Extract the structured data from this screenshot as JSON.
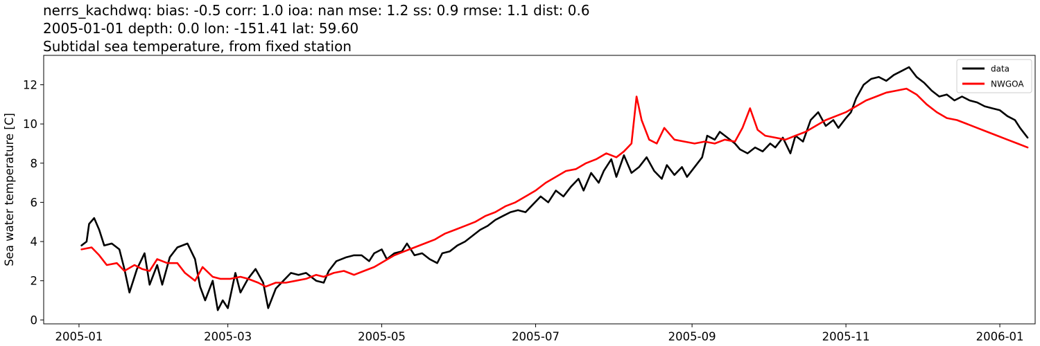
{
  "chart_data": {
    "type": "line",
    "title_lines": [
      "nerrs_kachdwq: bias: -0.5  corr: 1.0  ioa: nan  mse: 1.2  ss: 0.9  rmse: 1.1  dist: 0.6",
      "2005-01-01 depth: 0.0 lon: -151.41 lat: 59.60",
      "Subtidal sea temperature, from fixed station"
    ],
    "xlabel": "",
    "ylabel": "Sea water temperature [C]",
    "xlim": [
      "2004-12-18",
      "2006-01-15"
    ],
    "ylim": [
      -0.2,
      13.5
    ],
    "x_ticks": [
      "2005-01",
      "2005-03",
      "2005-05",
      "2005-07",
      "2005-09",
      "2005-11",
      "2006-01"
    ],
    "y_ticks": [
      0,
      2,
      4,
      6,
      8,
      10,
      12
    ],
    "grid": false,
    "legend": {
      "position": "top-right",
      "entries": [
        "data",
        "NWGOA"
      ]
    },
    "series": [
      {
        "name": "data",
        "color": "#000000",
        "points": [
          [
            "2005-01-02",
            3.8
          ],
          [
            "2005-01-04",
            4.0
          ],
          [
            "2005-01-05",
            4.9
          ],
          [
            "2005-01-07",
            5.2
          ],
          [
            "2005-01-09",
            4.6
          ],
          [
            "2005-01-11",
            3.8
          ],
          [
            "2005-01-14",
            3.9
          ],
          [
            "2005-01-17",
            3.6
          ],
          [
            "2005-01-19",
            2.6
          ],
          [
            "2005-01-21",
            1.4
          ],
          [
            "2005-01-24",
            2.6
          ],
          [
            "2005-01-27",
            3.4
          ],
          [
            "2005-01-29",
            1.8
          ],
          [
            "2005-02-01",
            2.8
          ],
          [
            "2005-02-03",
            1.8
          ],
          [
            "2005-02-06",
            3.2
          ],
          [
            "2005-02-09",
            3.7
          ],
          [
            "2005-02-13",
            3.9
          ],
          [
            "2005-02-16",
            3.1
          ],
          [
            "2005-02-18",
            1.7
          ],
          [
            "2005-02-20",
            1.0
          ],
          [
            "2005-02-23",
            2.0
          ],
          [
            "2005-02-25",
            0.5
          ],
          [
            "2005-02-27",
            1.0
          ],
          [
            "2005-03-01",
            0.6
          ],
          [
            "2005-03-04",
            2.4
          ],
          [
            "2005-03-06",
            1.4
          ],
          [
            "2005-03-09",
            2.1
          ],
          [
            "2005-03-12",
            2.6
          ],
          [
            "2005-03-15",
            1.9
          ],
          [
            "2005-03-17",
            0.6
          ],
          [
            "2005-03-20",
            1.6
          ],
          [
            "2005-03-23",
            2.0
          ],
          [
            "2005-03-26",
            2.4
          ],
          [
            "2005-03-29",
            2.3
          ],
          [
            "2005-04-01",
            2.4
          ],
          [
            "2005-04-05",
            2.0
          ],
          [
            "2005-04-08",
            1.9
          ],
          [
            "2005-04-10",
            2.5
          ],
          [
            "2005-04-13",
            3.0
          ],
          [
            "2005-04-17",
            3.2
          ],
          [
            "2005-04-20",
            3.3
          ],
          [
            "2005-04-23",
            3.3
          ],
          [
            "2005-04-26",
            3.0
          ],
          [
            "2005-04-28",
            3.4
          ],
          [
            "2005-05-01",
            3.6
          ],
          [
            "2005-05-03",
            3.1
          ],
          [
            "2005-05-06",
            3.4
          ],
          [
            "2005-05-09",
            3.5
          ],
          [
            "2005-05-11",
            3.9
          ],
          [
            "2005-05-14",
            3.3
          ],
          [
            "2005-05-17",
            3.4
          ],
          [
            "2005-05-20",
            3.1
          ],
          [
            "2005-05-23",
            2.9
          ],
          [
            "2005-05-25",
            3.4
          ],
          [
            "2005-05-28",
            3.5
          ],
          [
            "2005-05-31",
            3.8
          ],
          [
            "2005-06-03",
            4.0
          ],
          [
            "2005-06-06",
            4.3
          ],
          [
            "2005-06-09",
            4.6
          ],
          [
            "2005-06-12",
            4.8
          ],
          [
            "2005-06-15",
            5.1
          ],
          [
            "2005-06-18",
            5.3
          ],
          [
            "2005-06-21",
            5.5
          ],
          [
            "2005-06-24",
            5.6
          ],
          [
            "2005-06-27",
            5.5
          ],
          [
            "2005-06-30",
            5.9
          ],
          [
            "2005-07-03",
            6.3
          ],
          [
            "2005-07-06",
            6.0
          ],
          [
            "2005-07-09",
            6.6
          ],
          [
            "2005-07-12",
            6.3
          ],
          [
            "2005-07-15",
            6.8
          ],
          [
            "2005-07-18",
            7.2
          ],
          [
            "2005-07-20",
            6.6
          ],
          [
            "2005-07-23",
            7.5
          ],
          [
            "2005-07-26",
            7.0
          ],
          [
            "2005-07-28",
            7.6
          ],
          [
            "2005-07-31",
            8.2
          ],
          [
            "2005-08-02",
            7.3
          ],
          [
            "2005-08-05",
            8.4
          ],
          [
            "2005-08-08",
            7.5
          ],
          [
            "2005-08-11",
            7.8
          ],
          [
            "2005-08-14",
            8.3
          ],
          [
            "2005-08-17",
            7.6
          ],
          [
            "2005-08-20",
            7.2
          ],
          [
            "2005-08-22",
            7.9
          ],
          [
            "2005-08-25",
            7.4
          ],
          [
            "2005-08-28",
            7.8
          ],
          [
            "2005-08-30",
            7.3
          ],
          [
            "2005-09-02",
            7.8
          ],
          [
            "2005-09-05",
            8.3
          ],
          [
            "2005-09-07",
            9.4
          ],
          [
            "2005-09-10",
            9.2
          ],
          [
            "2005-09-12",
            9.6
          ],
          [
            "2005-09-15",
            9.3
          ],
          [
            "2005-09-18",
            9.0
          ],
          [
            "2005-09-20",
            8.7
          ],
          [
            "2005-09-23",
            8.5
          ],
          [
            "2005-09-26",
            8.8
          ],
          [
            "2005-09-29",
            8.6
          ],
          [
            "2005-10-02",
            9.0
          ],
          [
            "2005-10-04",
            8.8
          ],
          [
            "2005-10-07",
            9.3
          ],
          [
            "2005-10-10",
            8.5
          ],
          [
            "2005-10-12",
            9.4
          ],
          [
            "2005-10-15",
            9.1
          ],
          [
            "2005-10-18",
            10.2
          ],
          [
            "2005-10-21",
            10.6
          ],
          [
            "2005-10-24",
            9.9
          ],
          [
            "2005-10-27",
            10.2
          ],
          [
            "2005-10-29",
            9.8
          ],
          [
            "2005-11-01",
            10.3
          ],
          [
            "2005-11-03",
            10.6
          ],
          [
            "2005-11-05",
            11.3
          ],
          [
            "2005-11-08",
            12.0
          ],
          [
            "2005-11-11",
            12.3
          ],
          [
            "2005-11-14",
            12.4
          ],
          [
            "2005-11-17",
            12.2
          ],
          [
            "2005-11-20",
            12.5
          ],
          [
            "2005-11-23",
            12.7
          ],
          [
            "2005-11-26",
            12.9
          ],
          [
            "2005-11-29",
            12.4
          ],
          [
            "2005-12-02",
            12.1
          ],
          [
            "2005-12-05",
            11.7
          ],
          [
            "2005-12-08",
            11.4
          ],
          [
            "2005-12-11",
            11.5
          ],
          [
            "2005-12-14",
            11.2
          ],
          [
            "2005-12-17",
            11.4
          ],
          [
            "2005-12-20",
            11.2
          ],
          [
            "2005-12-23",
            11.1
          ],
          [
            "2005-12-26",
            10.9
          ],
          [
            "2005-12-29",
            10.8
          ],
          [
            "2006-01-01",
            10.7
          ],
          [
            "2006-01-04",
            10.4
          ],
          [
            "2006-01-07",
            10.2
          ],
          [
            "2006-01-09",
            9.8
          ],
          [
            "2006-01-12",
            9.3
          ]
        ]
      },
      {
        "name": "NWGOA",
        "color": "#ff0000",
        "points": [
          [
            "2005-01-02",
            3.6
          ],
          [
            "2005-01-06",
            3.7
          ],
          [
            "2005-01-09",
            3.3
          ],
          [
            "2005-01-12",
            2.8
          ],
          [
            "2005-01-16",
            2.9
          ],
          [
            "2005-01-19",
            2.5
          ],
          [
            "2005-01-23",
            2.8
          ],
          [
            "2005-01-26",
            2.6
          ],
          [
            "2005-01-29",
            2.5
          ],
          [
            "2005-02-01",
            3.1
          ],
          [
            "2005-02-05",
            2.9
          ],
          [
            "2005-02-09",
            2.9
          ],
          [
            "2005-02-12",
            2.4
          ],
          [
            "2005-02-16",
            2.0
          ],
          [
            "2005-02-19",
            2.7
          ],
          [
            "2005-02-23",
            2.2
          ],
          [
            "2005-02-26",
            2.1
          ],
          [
            "2005-03-02",
            2.1
          ],
          [
            "2005-03-06",
            2.2
          ],
          [
            "2005-03-09",
            2.1
          ],
          [
            "2005-03-13",
            1.9
          ],
          [
            "2005-03-16",
            1.7
          ],
          [
            "2005-03-20",
            1.9
          ],
          [
            "2005-03-24",
            1.9
          ],
          [
            "2005-03-28",
            2.0
          ],
          [
            "2005-04-01",
            2.1
          ],
          [
            "2005-04-05",
            2.3
          ],
          [
            "2005-04-08",
            2.2
          ],
          [
            "2005-04-12",
            2.4
          ],
          [
            "2005-04-16",
            2.5
          ],
          [
            "2005-04-20",
            2.3
          ],
          [
            "2005-04-24",
            2.5
          ],
          [
            "2005-04-28",
            2.7
          ],
          [
            "2005-05-02",
            3.0
          ],
          [
            "2005-05-06",
            3.3
          ],
          [
            "2005-05-10",
            3.5
          ],
          [
            "2005-05-14",
            3.7
          ],
          [
            "2005-05-18",
            3.9
          ],
          [
            "2005-05-22",
            4.1
          ],
          [
            "2005-05-26",
            4.4
          ],
          [
            "2005-05-30",
            4.6
          ],
          [
            "2005-06-03",
            4.8
          ],
          [
            "2005-06-07",
            5.0
          ],
          [
            "2005-06-11",
            5.3
          ],
          [
            "2005-06-15",
            5.5
          ],
          [
            "2005-06-19",
            5.8
          ],
          [
            "2005-06-23",
            6.0
          ],
          [
            "2005-06-27",
            6.3
          ],
          [
            "2005-07-01",
            6.6
          ],
          [
            "2005-07-05",
            7.0
          ],
          [
            "2005-07-09",
            7.3
          ],
          [
            "2005-07-13",
            7.6
          ],
          [
            "2005-07-17",
            7.7
          ],
          [
            "2005-07-21",
            8.0
          ],
          [
            "2005-07-25",
            8.2
          ],
          [
            "2005-07-29",
            8.5
          ],
          [
            "2005-08-02",
            8.3
          ],
          [
            "2005-08-05",
            8.6
          ],
          [
            "2005-08-08",
            9.0
          ],
          [
            "2005-08-10",
            11.4
          ],
          [
            "2005-08-12",
            10.2
          ],
          [
            "2005-08-15",
            9.2
          ],
          [
            "2005-08-18",
            9.0
          ],
          [
            "2005-08-21",
            9.8
          ],
          [
            "2005-08-25",
            9.2
          ],
          [
            "2005-08-29",
            9.1
          ],
          [
            "2005-09-02",
            9.0
          ],
          [
            "2005-09-06",
            9.1
          ],
          [
            "2005-09-10",
            9.0
          ],
          [
            "2005-09-14",
            9.2
          ],
          [
            "2005-09-18",
            9.1
          ],
          [
            "2005-09-21",
            9.8
          ],
          [
            "2005-09-24",
            10.8
          ],
          [
            "2005-09-27",
            9.7
          ],
          [
            "2005-09-30",
            9.4
          ],
          [
            "2005-10-04",
            9.3
          ],
          [
            "2005-10-08",
            9.2
          ],
          [
            "2005-10-12",
            9.4
          ],
          [
            "2005-10-16",
            9.6
          ],
          [
            "2005-10-20",
            9.9
          ],
          [
            "2005-10-24",
            10.2
          ],
          [
            "2005-10-28",
            10.4
          ],
          [
            "2005-11-01",
            10.6
          ],
          [
            "2005-11-05",
            10.9
          ],
          [
            "2005-11-09",
            11.2
          ],
          [
            "2005-11-13",
            11.4
          ],
          [
            "2005-11-17",
            11.6
          ],
          [
            "2005-11-21",
            11.7
          ],
          [
            "2005-11-25",
            11.8
          ],
          [
            "2005-11-29",
            11.5
          ],
          [
            "2005-12-03",
            11.0
          ],
          [
            "2005-12-07",
            10.6
          ],
          [
            "2005-12-11",
            10.3
          ],
          [
            "2005-12-15",
            10.2
          ],
          [
            "2005-12-19",
            10.0
          ],
          [
            "2005-12-23",
            9.8
          ],
          [
            "2005-12-27",
            9.6
          ],
          [
            "2005-12-31",
            9.4
          ],
          [
            "2006-01-04",
            9.2
          ],
          [
            "2006-01-08",
            9.0
          ],
          [
            "2006-01-12",
            8.8
          ]
        ]
      }
    ]
  }
}
